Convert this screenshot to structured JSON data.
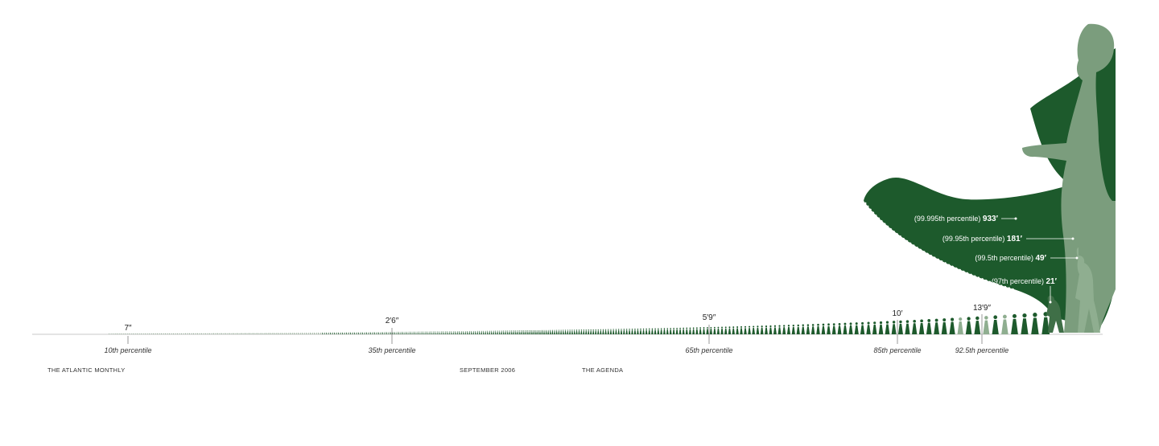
{
  "markers": [
    {
      "height": "7″",
      "percentile": "10th percentile"
    },
    {
      "height": "2′6″",
      "percentile": "35th percentile"
    },
    {
      "height": "5′9″",
      "percentile": "65th percentile"
    },
    {
      "height": "10′",
      "percentile": "85th percentile"
    },
    {
      "height": "13′9″",
      "percentile": "92.5th percentile"
    }
  ],
  "callouts": [
    {
      "percentile": "(99.995th percentile)",
      "height": "933′"
    },
    {
      "percentile": "(99.95th percentile)",
      "height": "181′"
    },
    {
      "percentile": "(99.5th percentile)",
      "height": "49′"
    },
    {
      "percentile": "(97th percentile)",
      "height": "21′"
    }
  ],
  "footer": {
    "publication": "THE ATLANTIC MONTHLY",
    "date": "SEPTEMBER 2006",
    "section": "THE AGENDA"
  }
}
